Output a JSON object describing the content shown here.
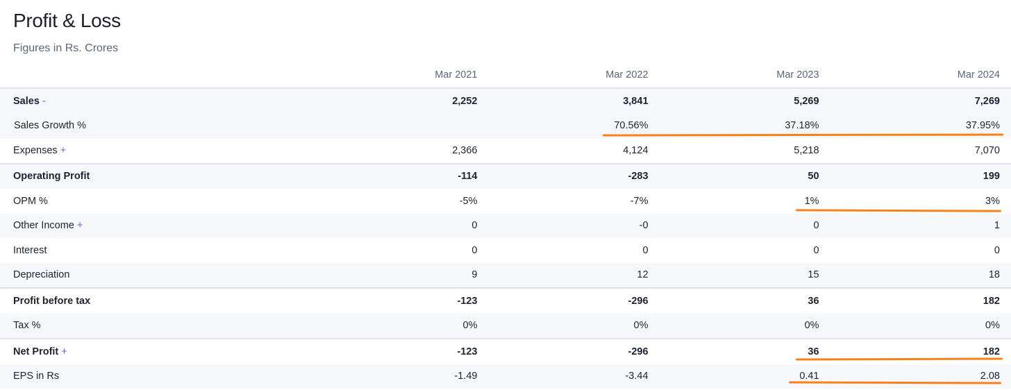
{
  "title": "Profit & Loss",
  "subtitle": "Figures in Rs. Crores",
  "columns": [
    "Mar 2021",
    "Mar 2022",
    "Mar 2023",
    "Mar 2024"
  ],
  "rows": [
    {
      "label": "Sales",
      "toggle": "-",
      "values": [
        "2,252",
        "3,841",
        "5,269",
        "7,269"
      ]
    },
    {
      "label": "Sales Growth %",
      "toggle": "",
      "values": [
        "",
        "70.56%",
        "37.18%",
        "37.95%"
      ]
    },
    {
      "label": "Expenses",
      "toggle": "+",
      "values": [
        "2,366",
        "4,124",
        "5,218",
        "7,070"
      ]
    },
    {
      "label": "Operating Profit",
      "toggle": "",
      "values": [
        "-114",
        "-283",
        "50",
        "199"
      ]
    },
    {
      "label": "OPM %",
      "toggle": "",
      "values": [
        "-5%",
        "-7%",
        "1%",
        "3%"
      ]
    },
    {
      "label": "Other Income",
      "toggle": "+",
      "values": [
        "0",
        "-0",
        "0",
        "1"
      ]
    },
    {
      "label": "Interest",
      "toggle": "",
      "values": [
        "0",
        "0",
        "0",
        "0"
      ]
    },
    {
      "label": "Depreciation",
      "toggle": "",
      "values": [
        "9",
        "12",
        "15",
        "18"
      ]
    },
    {
      "label": "Profit before tax",
      "toggle": "",
      "values": [
        "-123",
        "-296",
        "36",
        "182"
      ]
    },
    {
      "label": "Tax %",
      "toggle": "",
      "values": [
        "0%",
        "0%",
        "0%",
        "0%"
      ]
    },
    {
      "label": "Net Profit",
      "toggle": "+",
      "values": [
        "-123",
        "-296",
        "36",
        "182"
      ]
    },
    {
      "label": "EPS in Rs",
      "toggle": "",
      "values": [
        "-1.49",
        "-3.44",
        "0.41",
        "2.08"
      ]
    }
  ],
  "colors": {
    "accent_toggle": "#6d5ce8",
    "highlight": "#f7821b",
    "stripe": "#f7f8fc",
    "border": "#dfe4ef"
  }
}
